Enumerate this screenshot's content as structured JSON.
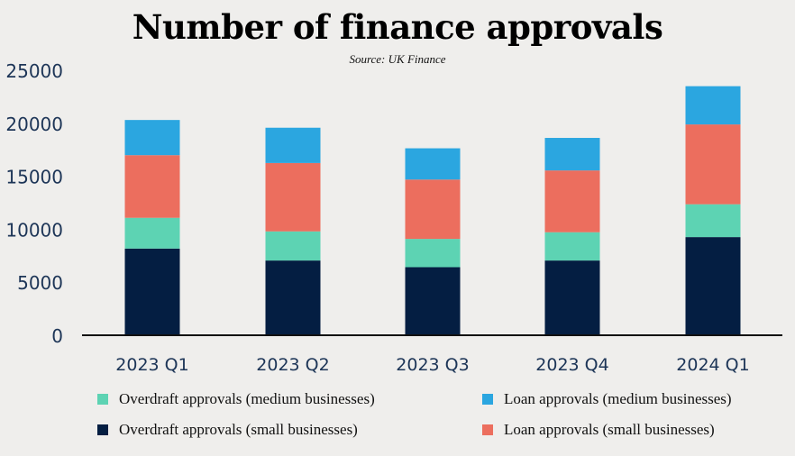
{
  "chart_data": {
    "type": "bar",
    "stacked": true,
    "title": "Number of finance approvals",
    "subtitle": "Source: UK Finance",
    "xlabel": "",
    "ylabel": "",
    "ylim": [
      0,
      25000
    ],
    "yticks": [
      0,
      5000,
      10000,
      15000,
      20000,
      25000
    ],
    "grid": false,
    "legend_position": "bottom",
    "categories": [
      "2023 Q1",
      "2023 Q2",
      "2023 Q3",
      "2023 Q4",
      "2024 Q1"
    ],
    "series": [
      {
        "name": "Overdraft approvals (small businesses)",
        "color": "#041e42",
        "values": [
          8180,
          7050,
          6420,
          7050,
          9260
        ]
      },
      {
        "name": "Overdraft approvals (medium businesses)",
        "color": "#5dd3b3",
        "values": [
          2900,
          2750,
          2670,
          2670,
          3100
        ]
      },
      {
        "name": "Loan approvals (small businesses)",
        "color": "#ec6e5e",
        "values": [
          5910,
          6450,
          5600,
          5830,
          7530
        ]
      },
      {
        "name": "Loan approvals (medium businesses)",
        "color": "#2ba6e0",
        "values": [
          3320,
          3330,
          2950,
          3070,
          3610
        ]
      }
    ]
  }
}
